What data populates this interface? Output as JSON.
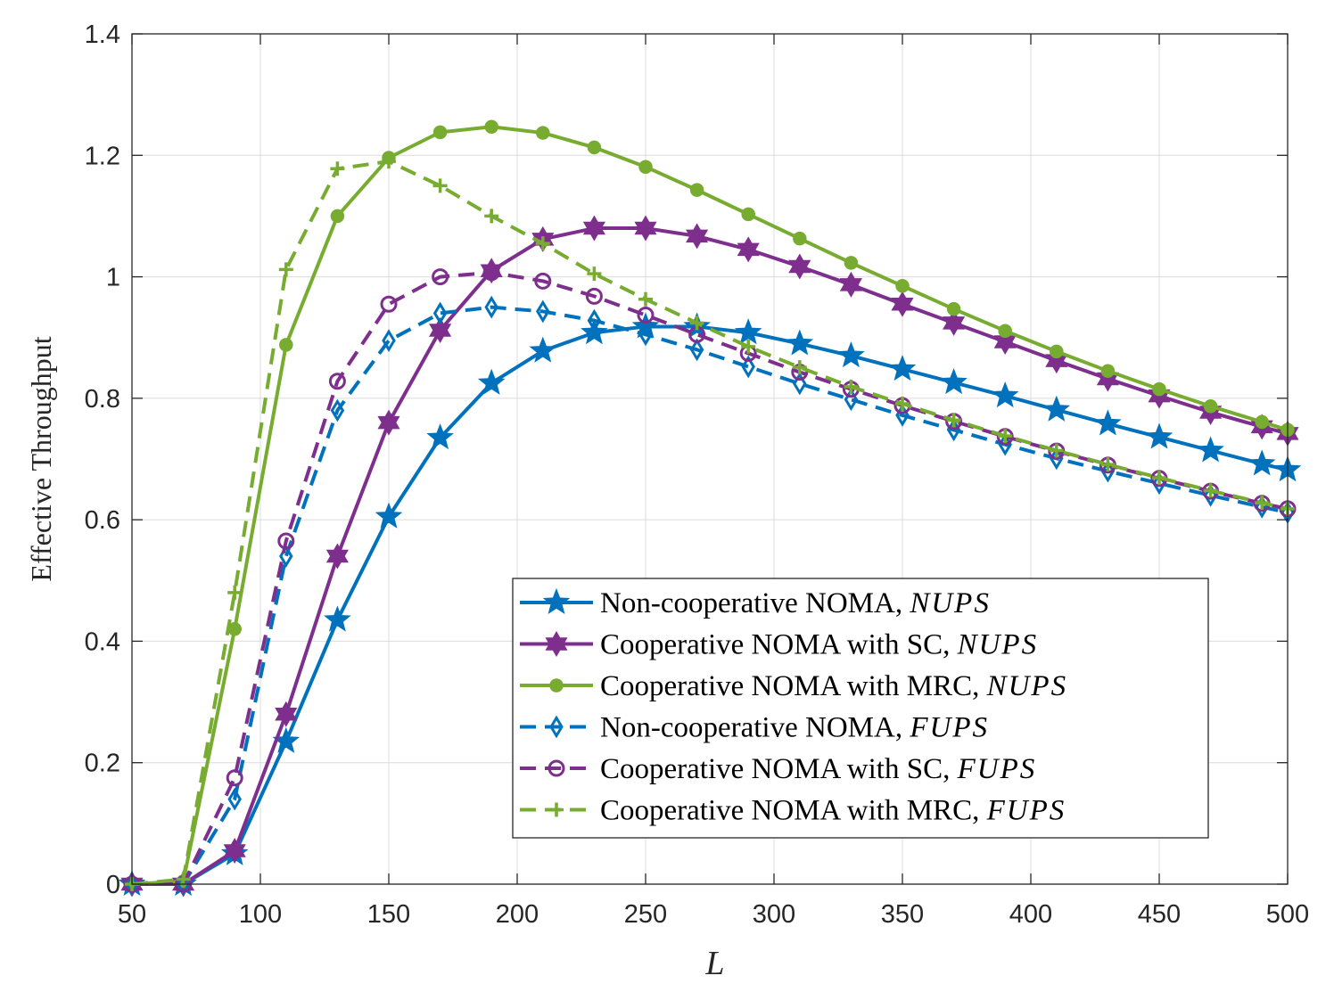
{
  "chart_data": {
    "type": "line",
    "title": "",
    "xlabel": "L",
    "ylabel": "Effective Throughput",
    "xlim": [
      50,
      500
    ],
    "ylim": [
      0,
      1.4
    ],
    "xticks": [
      "50",
      "100",
      "150",
      "200",
      "250",
      "300",
      "350",
      "400",
      "450",
      "500"
    ],
    "xtick_values": [
      50,
      100,
      150,
      200,
      250,
      300,
      350,
      400,
      450,
      500
    ],
    "yticks": [
      "0",
      "0.2",
      "0.4",
      "0.6",
      "0.8",
      "1",
      "1.2",
      "1.4"
    ],
    "ytick_values": [
      0,
      0.2,
      0.4,
      0.6,
      0.8,
      1.0,
      1.2,
      1.4
    ],
    "grid": true,
    "legend_position": "bottom-right",
    "x": [
      50,
      70,
      90,
      110,
      130,
      150,
      170,
      190,
      210,
      230,
      250,
      270,
      290,
      310,
      330,
      350,
      370,
      390,
      410,
      430,
      450,
      470,
      490,
      500
    ],
    "series": [
      {
        "name": "Non-cooperative NOMA,",
        "scheme": "NUPS",
        "color": "#0072BD",
        "line_style": "solid",
        "marker": "pentagram",
        "values": [
          0,
          0,
          0.05,
          0.235,
          0.435,
          0.605,
          0.735,
          0.825,
          0.878,
          0.908,
          0.918,
          0.918,
          0.908,
          0.89,
          0.87,
          0.848,
          0.826,
          0.804,
          0.781,
          0.758,
          0.736,
          0.714,
          0.692,
          0.682
        ]
      },
      {
        "name": "Cooperative NOMA with SC,",
        "scheme": "NUPS",
        "color": "#7E2F8E",
        "line_style": "solid",
        "marker": "hexagram",
        "values": [
          0,
          0,
          0.055,
          0.28,
          0.54,
          0.76,
          0.912,
          1.01,
          1.062,
          1.08,
          1.08,
          1.067,
          1.045,
          1.017,
          0.987,
          0.955,
          0.924,
          0.893,
          0.862,
          0.832,
          0.804,
          0.777,
          0.753,
          0.742
        ]
      },
      {
        "name": "Cooperative NOMA with MRC,",
        "scheme": "NUPS",
        "color": "#77AC30",
        "line_style": "solid",
        "marker": "filled-circle",
        "values": [
          0,
          0.005,
          0.42,
          0.888,
          1.1,
          1.196,
          1.238,
          1.247,
          1.237,
          1.213,
          1.181,
          1.143,
          1.103,
          1.063,
          1.023,
          0.985,
          0.947,
          0.911,
          0.877,
          0.845,
          0.815,
          0.787,
          0.761,
          0.748
        ]
      },
      {
        "name": "Non-cooperative NOMA,",
        "scheme": "FUPS",
        "color": "#0072BD",
        "line_style": "dashed",
        "marker": "diamond",
        "values": [
          0,
          0,
          0.14,
          0.54,
          0.78,
          0.895,
          0.94,
          0.95,
          0.943,
          0.928,
          0.905,
          0.88,
          0.852,
          0.824,
          0.798,
          0.772,
          0.748,
          0.724,
          0.701,
          0.68,
          0.66,
          0.64,
          0.621,
          0.612
        ]
      },
      {
        "name": "Cooperative NOMA with SC,",
        "scheme": "FUPS",
        "color": "#7E2F8E",
        "line_style": "dashed",
        "marker": "open-circle",
        "values": [
          0,
          0,
          0.175,
          0.565,
          0.828,
          0.955,
          1.0,
          1.007,
          0.993,
          0.968,
          0.937,
          0.905,
          0.874,
          0.843,
          0.815,
          0.788,
          0.762,
          0.737,
          0.713,
          0.69,
          0.668,
          0.647,
          0.627,
          0.618
        ]
      },
      {
        "name": "Cooperative NOMA with MRC,",
        "scheme": "FUPS",
        "color": "#77AC30",
        "line_style": "dashed",
        "marker": "plus",
        "values": [
          0,
          0.008,
          0.48,
          1.012,
          1.178,
          1.19,
          1.15,
          1.1,
          1.055,
          1.005,
          0.963,
          0.924,
          0.885,
          0.851,
          0.819,
          0.791,
          0.764,
          0.738,
          0.714,
          0.691,
          0.669,
          0.648,
          0.628,
          0.618
        ]
      }
    ]
  }
}
